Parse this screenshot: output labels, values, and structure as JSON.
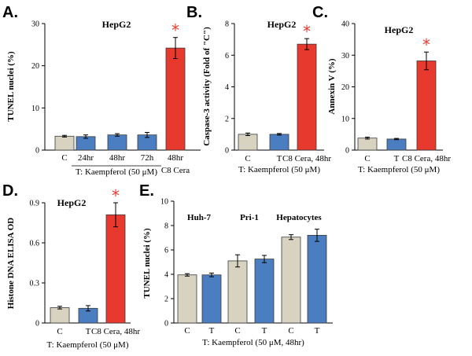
{
  "colors": {
    "control": "#d8d3c1",
    "treated": "#4a7ec0",
    "ceramide": "#e8392f",
    "star": "#e8392f"
  },
  "chart_data": [
    {
      "panel": "A.",
      "type": "bar",
      "title": "HepG2",
      "ylabel": "TUNEL nuclei (%)",
      "ylim": [
        0,
        30
      ],
      "yticks": [
        "0",
        "10",
        "20",
        "30"
      ],
      "categories": [
        "C",
        "24hr",
        "48hr",
        "72h",
        "48hr"
      ],
      "values": [
        3.3,
        3.2,
        3.6,
        3.6,
        24.2
      ],
      "errors": [
        0.2,
        0.4,
        0.3,
        0.6,
        2.5
      ],
      "bar_colors": [
        "control",
        "treated",
        "treated",
        "treated",
        "ceramide"
      ],
      "significant": [
        false,
        false,
        false,
        false,
        true
      ],
      "group_label": "T: Kaempferol (50 μM)",
      "extra_label": "C8 Cera",
      "star": "*"
    },
    {
      "panel": "B.",
      "type": "bar",
      "title": "HepG2",
      "ylabel": "Caspase-3 activity (Fold of \"C\")",
      "ylim": [
        0,
        8
      ],
      "yticks": [
        "0",
        "2",
        "4",
        "6",
        "8"
      ],
      "categories": [
        "C",
        "T",
        "C8 Cera, 48hr"
      ],
      "values": [
        1.0,
        1.0,
        6.7
      ],
      "errors": [
        0.08,
        0.05,
        0.35
      ],
      "bar_colors": [
        "control",
        "treated",
        "ceramide"
      ],
      "significant": [
        false,
        false,
        true
      ],
      "xlabel": "T: Kaempferol (50 μM)",
      "star": "*"
    },
    {
      "panel": "C.",
      "type": "bar",
      "title": "HepG2",
      "ylabel": "Annexin V (%)",
      "ylim": [
        0,
        40
      ],
      "yticks": [
        "0",
        "10",
        "20",
        "30",
        "40"
      ],
      "categories": [
        "C",
        "T",
        "C8 Cera, 48hr"
      ],
      "values": [
        3.8,
        3.5,
        28.2
      ],
      "errors": [
        0.3,
        0.2,
        2.8
      ],
      "bar_colors": [
        "control",
        "treated",
        "ceramide"
      ],
      "significant": [
        false,
        false,
        true
      ],
      "xlabel": "T: Kaempferol (50 μM)",
      "star": "*"
    },
    {
      "panel": "D.",
      "type": "bar",
      "title": "HepG2",
      "ylabel": "Histone DNA ELISA OD",
      "ylim": [
        0,
        0.9
      ],
      "yticks": [
        "0",
        "0.3",
        "0.6",
        "0.9"
      ],
      "categories": [
        "C",
        "T",
        "C8 Cera, 48hr"
      ],
      "values": [
        0.115,
        0.11,
        0.81
      ],
      "errors": [
        0.01,
        0.02,
        0.09
      ],
      "bar_colors": [
        "control",
        "treated",
        "ceramide"
      ],
      "significant": [
        false,
        false,
        true
      ],
      "xlabel": "T: Kaempferol (50 μM)",
      "star": "*"
    },
    {
      "panel": "E.",
      "type": "bar",
      "title": "",
      "ylabel": "TUNEL nuclei (%)",
      "ylim": [
        0,
        10
      ],
      "yticks": [
        "0",
        "2",
        "4",
        "6",
        "8",
        "10"
      ],
      "categories": [
        "C",
        "T",
        "C",
        "T",
        "C",
        "T"
      ],
      "values": [
        3.95,
        3.95,
        5.1,
        5.25,
        7.05,
        7.2
      ],
      "errors": [
        0.1,
        0.15,
        0.5,
        0.3,
        0.2,
        0.5
      ],
      "bar_colors": [
        "control",
        "treated",
        "control",
        "treated",
        "control",
        "treated"
      ],
      "significant": [
        false,
        false,
        false,
        false,
        false,
        false
      ],
      "groups": [
        "Huh-7",
        "Pri-1",
        "Hepatocytes"
      ],
      "xlabel": "T: Kaempferol (50 μM, 48hr)",
      "star": "*"
    }
  ]
}
